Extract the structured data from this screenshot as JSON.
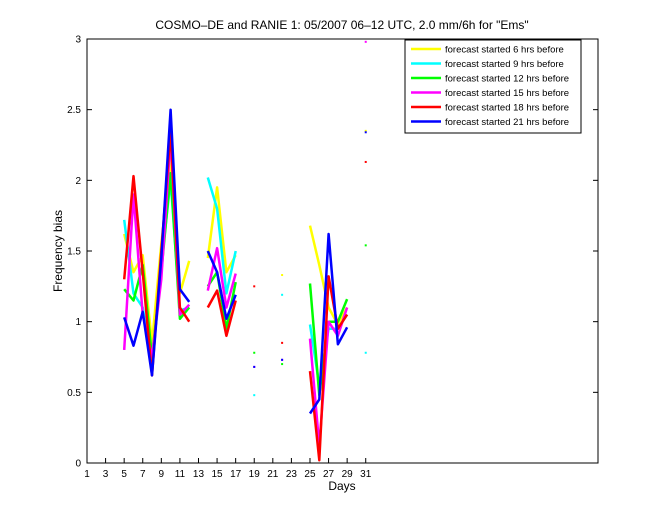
{
  "chart_data": {
    "type": "line",
    "title": "COSMO–DE and RANIE 1: 05/2007 06–12 UTC, 2.0 mm/6h for \"Ems\"",
    "xlabel": "Days",
    "ylabel": "Frequency bias",
    "xlim": [
      1,
      56
    ],
    "ylim": [
      0,
      3
    ],
    "xticks": [
      "1",
      "3",
      "5",
      "7",
      "9",
      "11",
      "13",
      "15",
      "17",
      "19",
      "21",
      "23",
      "25",
      "27",
      "29",
      "31"
    ],
    "xtick_values": [
      1,
      3,
      5,
      7,
      9,
      11,
      13,
      15,
      17,
      19,
      21,
      23,
      25,
      27,
      29,
      31
    ],
    "yticks": [
      "0",
      "0.5",
      "1",
      "1.5",
      "2",
      "2.5",
      "3"
    ],
    "ytick_values": [
      0,
      0.5,
      1,
      1.5,
      2,
      2.5,
      3
    ],
    "grid": false,
    "legend_position": "top-right",
    "x": [
      5,
      6,
      7,
      8,
      9,
      10,
      11,
      12,
      13,
      14,
      15,
      16,
      17,
      18,
      19,
      20,
      21,
      22,
      23,
      24,
      25,
      26,
      27,
      28,
      29,
      30,
      31
    ],
    "series": [
      {
        "name": "forecast started 6 hrs before",
        "color": "#ffff00",
        "values": [
          1.62,
          1.35,
          1.47,
          0.85,
          1.55,
          2.15,
          1.2,
          1.43,
          null,
          1.45,
          1.95,
          1.35,
          1.47,
          null,
          null,
          null,
          null,
          1.33,
          null,
          null,
          1.68,
          1.4,
          1.1,
          0.98,
          1.1,
          null,
          2.35
        ]
      },
      {
        "name": "forecast started 9 hrs before",
        "color": "#00ffff",
        "values": [
          1.72,
          1.2,
          1.1,
          0.7,
          1.4,
          2.0,
          1.08,
          1.1,
          null,
          2.02,
          1.8,
          1.2,
          1.5,
          null,
          0.48,
          null,
          null,
          1.19,
          null,
          null,
          0.98,
          0.55,
          0.95,
          0.95,
          1.05,
          null,
          0.78
        ]
      },
      {
        "name": "forecast started 12 hrs before",
        "color": "#00ff00",
        "values": [
          1.23,
          1.15,
          1.4,
          0.75,
          1.35,
          2.05,
          1.02,
          1.1,
          null,
          1.25,
          1.35,
          0.95,
          1.28,
          null,
          0.78,
          null,
          null,
          0.7,
          null,
          null,
          1.27,
          0.48,
          1.0,
          1.0,
          1.16,
          null,
          1.54
        ]
      },
      {
        "name": "forecast started 15 hrs before",
        "color": "#ff00ff",
        "values": [
          0.8,
          1.9,
          1.05,
          0.75,
          1.3,
          2.3,
          1.05,
          1.12,
          null,
          1.22,
          1.52,
          1.1,
          1.34,
          null,
          0.68,
          null,
          null,
          0.73,
          null,
          null,
          0.88,
          0.12,
          1.0,
          0.9,
          1.1,
          null,
          2.98
        ]
      },
      {
        "name": "forecast started 18 hrs before",
        "color": "#ff0000",
        "values": [
          1.3,
          2.03,
          1.35,
          0.62,
          1.5,
          2.35,
          1.1,
          1.0,
          null,
          1.1,
          1.22,
          0.9,
          1.15,
          null,
          1.25,
          null,
          null,
          0.85,
          null,
          null,
          0.65,
          0.02,
          1.32,
          0.95,
          1.05,
          null,
          2.13
        ]
      },
      {
        "name": "forecast started 21 hrs before",
        "color": "#0000ff",
        "values": [
          1.03,
          0.83,
          1.07,
          0.62,
          1.45,
          2.5,
          1.23,
          1.14,
          null,
          1.5,
          1.35,
          1.02,
          1.19,
          null,
          0.68,
          null,
          null,
          0.73,
          null,
          null,
          0.35,
          0.45,
          1.62,
          0.84,
          0.96,
          null,
          2.34
        ]
      }
    ]
  }
}
